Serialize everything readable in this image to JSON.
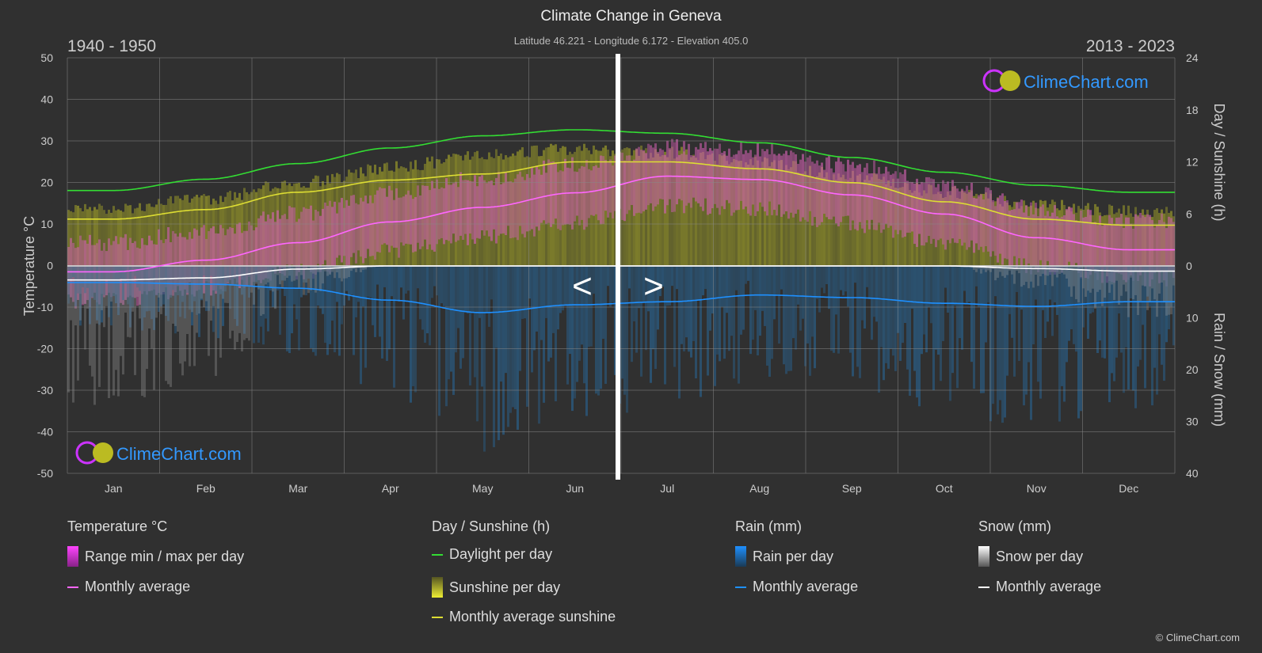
{
  "header": {
    "title": "Climate Change in Geneva",
    "subtitle": "Latitude 46.221 - Longitude 6.172 - Elevation 405.0",
    "left_period": "1940 - 1950",
    "right_period": "2013 - 2023"
  },
  "logo_text": "ClimeChart.com",
  "copyright": "© ClimeChart.com",
  "nav": {
    "prev": "<",
    "next": ">"
  },
  "chart_data": {
    "type": "line",
    "categories": [
      "Jan",
      "Feb",
      "Mar",
      "Apr",
      "May",
      "Jun",
      "Jul",
      "Aug",
      "Sep",
      "Oct",
      "Nov",
      "Dec"
    ],
    "y_left": {
      "label": "Temperature °C",
      "range": [
        -50,
        50
      ],
      "ticks": [
        "50",
        "40",
        "30",
        "20",
        "10",
        "0",
        "-10",
        "-20",
        "-30",
        "-40",
        "-50"
      ]
    },
    "y_right_top": {
      "label": "Day / Sunshine (h)",
      "range": [
        0,
        24
      ],
      "ticks": [
        "24",
        "18",
        "12",
        "6",
        "0"
      ]
    },
    "y_right_bottom": {
      "label": "Rain / Snow (mm)",
      "range": [
        0,
        40
      ],
      "ticks": [
        "0",
        "10",
        "20",
        "30",
        "40"
      ]
    },
    "grid": true,
    "series": [
      {
        "name": "Monthly average",
        "group": "temperature",
        "color": "#ff66ff",
        "values": [
          -1.5,
          1.3,
          5.5,
          10.5,
          14,
          17.5,
          21.5,
          20.7,
          17,
          12.4,
          6.7,
          3.8
        ]
      },
      {
        "name": "Daylight per day",
        "group": "sun",
        "color": "#33dd33",
        "values": [
          8.7,
          10,
          11.8,
          13.6,
          15,
          15.7,
          15.3,
          14.2,
          12.5,
          10.8,
          9.3,
          8.5
        ]
      },
      {
        "name": "Monthly average sunshine",
        "group": "sun",
        "color": "#dddd33",
        "values": [
          5.4,
          6.5,
          8.5,
          9.9,
          10.6,
          12,
          12,
          11.2,
          9.6,
          7.4,
          5.4,
          4.7
        ]
      },
      {
        "name": "Monthly average",
        "group": "rain",
        "color": "#1e90ff",
        "values": [
          3.2,
          3.5,
          4.3,
          6.6,
          9,
          7.5,
          6.9,
          5.6,
          6.1,
          7.2,
          7.8,
          6.9
        ]
      },
      {
        "name": "Monthly average",
        "group": "snow",
        "color": "#ffffff",
        "values": [
          2.7,
          2.3,
          0.6,
          0,
          0,
          0,
          0,
          0,
          0,
          0,
          0.5,
          1.0
        ]
      }
    ]
  },
  "legend": {
    "temperature": {
      "title": "Temperature °C",
      "range": "Range min / max per day",
      "avg": "Monthly average"
    },
    "sun": {
      "title": "Day / Sunshine (h)",
      "daylight": "Daylight per day",
      "sunshine": "Sunshine per day",
      "avg": "Monthly average sunshine"
    },
    "rain": {
      "title": "Rain (mm)",
      "per_day": "Rain per day",
      "avg": "Monthly average"
    },
    "snow": {
      "title": "Snow (mm)",
      "per_day": "Snow per day",
      "avg": "Monthly average"
    }
  }
}
